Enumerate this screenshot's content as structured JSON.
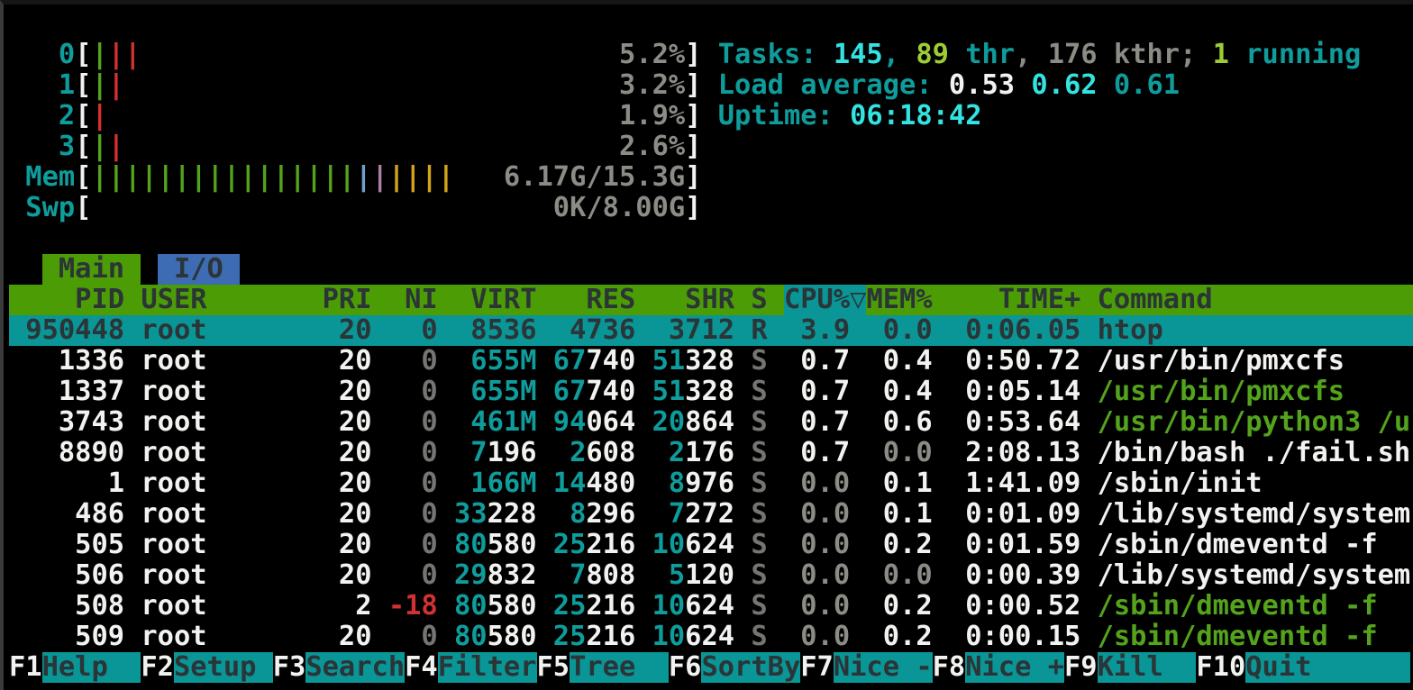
{
  "app": "htop",
  "colors": {
    "background": "#000000",
    "border": "#3a3a3a",
    "white": "#f2f2f0",
    "gray": "#8a8c85",
    "dim_gray": "#747672",
    "cyan": "#0f9c9c",
    "bright_cyan": "#34e2e2",
    "green": "#54a31c",
    "lime": "#9ccd36",
    "red": "#d23131",
    "blue_bar": "#729fcf",
    "magenta_bar": "#ad7fa8",
    "yellow_bar": "#d2a31c",
    "teal_bg": "#0a9596",
    "header_green_bg": "#4c9c06",
    "tab_blue_bg": "#3d6cb4",
    "dark_text": "#2b3436"
  },
  "meters": [
    {
      "name": "cpu-meter-0",
      "label": "0",
      "bars": [
        "green",
        "red",
        "red"
      ],
      "value": "5.2%"
    },
    {
      "name": "cpu-meter-1",
      "label": "1",
      "bars": [
        "green",
        "red"
      ],
      "value": "3.2%"
    },
    {
      "name": "cpu-meter-2",
      "label": "2",
      "bars": [
        "red"
      ],
      "value": "1.9%"
    },
    {
      "name": "cpu-meter-3",
      "label": "3",
      "bars": [
        "green",
        "red"
      ],
      "value": "2.6%"
    },
    {
      "name": "mem-meter",
      "label": "Mem",
      "bars": [
        "green",
        "green",
        "green",
        "green",
        "green",
        "green",
        "green",
        "green",
        "green",
        "green",
        "green",
        "green",
        "green",
        "green",
        "green",
        "green",
        "blue",
        "magenta",
        "yellow",
        "yellow",
        "yellow",
        "yellow"
      ],
      "value": "6.17G/15.3G"
    },
    {
      "name": "swp-meter",
      "label": "Swp",
      "bars": [],
      "value": "0K/8.00G"
    }
  ],
  "summary": {
    "tasks_line": {
      "name": "tasks-summary",
      "segments": [
        [
          "Tasks: ",
          "cyan"
        ],
        [
          "145",
          "bright_cyan"
        ],
        [
          ", ",
          "cyan"
        ],
        [
          "89",
          "lime"
        ],
        [
          " thr",
          "cyan"
        ],
        [
          ", ",
          "gray"
        ],
        [
          "176",
          "gray"
        ],
        [
          " kthr",
          "gray"
        ],
        [
          "; ",
          "gray"
        ],
        [
          "1",
          "lime"
        ],
        [
          " running",
          "cyan"
        ]
      ]
    },
    "load_line": {
      "name": "load-average",
      "segments": [
        [
          "Load average: ",
          "cyan"
        ],
        [
          "0.53 ",
          "white"
        ],
        [
          "0.62 ",
          "bright_cyan"
        ],
        [
          "0.61",
          "cyan"
        ]
      ]
    },
    "uptime_line": {
      "name": "uptime",
      "segments": [
        [
          "Uptime: ",
          "cyan"
        ],
        [
          "06:18:42",
          "bright_cyan"
        ]
      ]
    }
  },
  "tabs": [
    {
      "name": "tab-main",
      "label": "Main",
      "active": true
    },
    {
      "name": "tab-io",
      "label": "I/O",
      "active": false
    }
  ],
  "table": {
    "columns": [
      "PID",
      "USER",
      "PRI",
      "NI",
      "VIRT",
      "RES",
      "SHR",
      "S",
      "CPU%",
      "MEM%",
      "TIME+",
      "Command"
    ],
    "sort_column": "CPU%",
    "sort_arrow": "▽",
    "rows": [
      {
        "pid": "950448",
        "user": "root",
        "pri": "20",
        "ni": "0",
        "virt": "8536",
        "res": "4736",
        "shr": "3712",
        "s": "R",
        "cpu": "3.9",
        "mem": "0.0",
        "time": "0:06.05",
        "cmd": "htop",
        "cmd_green": false,
        "selected": true
      },
      {
        "pid": "1336",
        "user": "root",
        "pri": "20",
        "ni": "0",
        "virt": "655M",
        "res": "67740",
        "shr": "51328",
        "s": "S",
        "cpu": "0.7",
        "mem": "0.4",
        "time": "0:50.72",
        "cmd": "/usr/bin/pmxcfs",
        "cmd_green": false,
        "selected": false
      },
      {
        "pid": "1337",
        "user": "root",
        "pri": "20",
        "ni": "0",
        "virt": "655M",
        "res": "67740",
        "shr": "51328",
        "s": "S",
        "cpu": "0.7",
        "mem": "0.4",
        "time": "0:05.14",
        "cmd": "/usr/bin/pmxcfs",
        "cmd_green": true,
        "selected": false
      },
      {
        "pid": "3743",
        "user": "root",
        "pri": "20",
        "ni": "0",
        "virt": "461M",
        "res": "94064",
        "shr": "20864",
        "s": "S",
        "cpu": "0.7",
        "mem": "0.6",
        "time": "0:53.64",
        "cmd": "/usr/bin/python3 /u",
        "cmd_green": true,
        "selected": false
      },
      {
        "pid": "8890",
        "user": "root",
        "pri": "20",
        "ni": "0",
        "virt": "7196",
        "res": "2608",
        "shr": "2176",
        "s": "S",
        "cpu": "0.7",
        "mem": "0.0",
        "time": "2:08.13",
        "cmd": "/bin/bash ./fail.sh",
        "cmd_green": false,
        "selected": false
      },
      {
        "pid": "1",
        "user": "root",
        "pri": "20",
        "ni": "0",
        "virt": "166M",
        "res": "14480",
        "shr": "8976",
        "s": "S",
        "cpu": "0.0",
        "mem": "0.1",
        "time": "1:41.09",
        "cmd": "/sbin/init",
        "cmd_green": false,
        "selected": false
      },
      {
        "pid": "486",
        "user": "root",
        "pri": "20",
        "ni": "0",
        "virt": "33228",
        "res": "8296",
        "shr": "7272",
        "s": "S",
        "cpu": "0.0",
        "mem": "0.1",
        "time": "0:01.09",
        "cmd": "/lib/systemd/system",
        "cmd_green": false,
        "selected": false
      },
      {
        "pid": "505",
        "user": "root",
        "pri": "20",
        "ni": "0",
        "virt": "80580",
        "res": "25216",
        "shr": "10624",
        "s": "S",
        "cpu": "0.0",
        "mem": "0.2",
        "time": "0:01.59",
        "cmd": "/sbin/dmeventd -f",
        "cmd_green": false,
        "selected": false
      },
      {
        "pid": "506",
        "user": "root",
        "pri": "20",
        "ni": "0",
        "virt": "29832",
        "res": "7808",
        "shr": "5120",
        "s": "S",
        "cpu": "0.0",
        "mem": "0.0",
        "time": "0:00.39",
        "cmd": "/lib/systemd/system",
        "cmd_green": false,
        "selected": false
      },
      {
        "pid": "508",
        "user": "root",
        "pri": "2",
        "ni": "-18",
        "virt": "80580",
        "res": "25216",
        "shr": "10624",
        "s": "S",
        "cpu": "0.0",
        "mem": "0.2",
        "time": "0:00.52",
        "cmd": "/sbin/dmeventd -f",
        "cmd_green": true,
        "selected": false
      },
      {
        "pid": "509",
        "user": "root",
        "pri": "20",
        "ni": "0",
        "virt": "80580",
        "res": "25216",
        "shr": "10624",
        "s": "S",
        "cpu": "0.0",
        "mem": "0.2",
        "time": "0:00.15",
        "cmd": "/sbin/dmeventd -f",
        "cmd_green": true,
        "selected": false
      }
    ]
  },
  "function_bar": [
    {
      "key": "F1",
      "label": "Help"
    },
    {
      "key": "F2",
      "label": "Setup"
    },
    {
      "key": "F3",
      "label": "Search"
    },
    {
      "key": "F4",
      "label": "Filter"
    },
    {
      "key": "F5",
      "label": "Tree"
    },
    {
      "key": "F6",
      "label": "SortBy"
    },
    {
      "key": "F7",
      "label": "Nice -"
    },
    {
      "key": "F8",
      "label": "Nice +"
    },
    {
      "key": "F9",
      "label": "Kill"
    },
    {
      "key": "F10",
      "label": "Quit"
    }
  ]
}
